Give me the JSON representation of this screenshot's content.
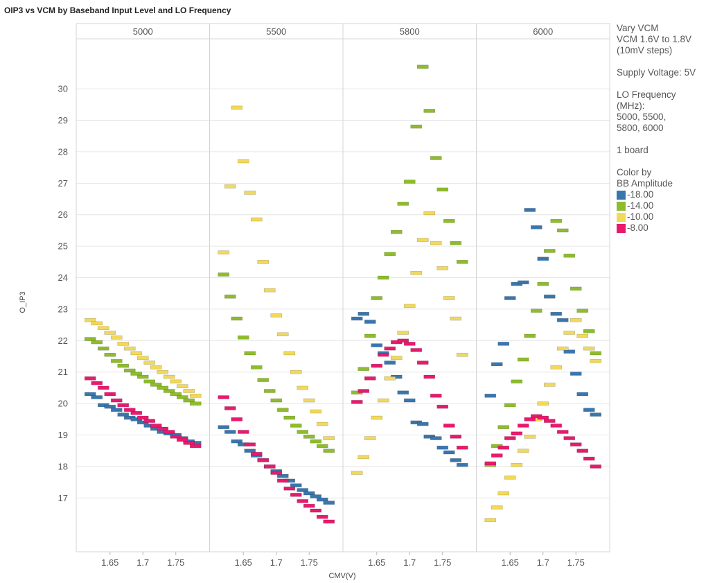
{
  "chart_data": {
    "type": "scatter",
    "title": "OIP3 vs VCM by Baseband Input Level and LO Frequency",
    "xlabel": "CMV(V)",
    "ylabel": "O_IP3",
    "xlim": [
      1.605,
      1.795
    ],
    "ylim": [
      15.4,
      31.5
    ],
    "yticks": [
      17,
      18,
      19,
      20,
      21,
      22,
      23,
      24,
      25,
      26,
      27,
      28,
      29,
      30
    ],
    "xticks": [
      1.65,
      1.7,
      1.75
    ],
    "xtick_labels": [
      "1.65",
      "1.7",
      "1.75"
    ],
    "grid": true,
    "legend_position": "right",
    "legend_title": "Color by BB Amplitude",
    "panels": [
      {
        "label": "5000",
        "series": [
          {
            "name": "-18.00",
            "x": [
              1.62,
              1.63,
              1.64,
              1.65,
              1.66,
              1.67,
              1.68,
              1.69,
              1.7,
              1.71,
              1.72,
              1.73,
              1.74,
              1.75,
              1.76,
              1.77,
              1.78
            ],
            "y": [
              20.3,
              20.2,
              19.95,
              19.9,
              19.8,
              19.65,
              19.55,
              19.5,
              19.4,
              19.3,
              19.2,
              19.1,
              19.05,
              19.0,
              18.9,
              18.8,
              18.75
            ]
          },
          {
            "name": "-14.00",
            "x": [
              1.62,
              1.63,
              1.64,
              1.65,
              1.66,
              1.67,
              1.68,
              1.69,
              1.7,
              1.71,
              1.72,
              1.73,
              1.74,
              1.75,
              1.76,
              1.77,
              1.78
            ],
            "y": [
              22.05,
              21.95,
              21.75,
              21.55,
              21.35,
              21.2,
              21.05,
              20.95,
              20.85,
              20.7,
              20.6,
              20.5,
              20.4,
              20.3,
              20.2,
              20.1,
              20.0
            ]
          },
          {
            "name": "-10.00",
            "x": [
              1.62,
              1.63,
              1.64,
              1.65,
              1.66,
              1.67,
              1.68,
              1.69,
              1.7,
              1.71,
              1.72,
              1.73,
              1.74,
              1.75,
              1.76,
              1.77,
              1.78
            ],
            "y": [
              22.65,
              22.55,
              22.4,
              22.25,
              22.1,
              21.9,
              21.75,
              21.6,
              21.45,
              21.3,
              21.15,
              21.0,
              20.85,
              20.7,
              20.55,
              20.4,
              20.25
            ]
          },
          {
            "name": "-8.00",
            "x": [
              1.62,
              1.63,
              1.64,
              1.65,
              1.66,
              1.67,
              1.68,
              1.69,
              1.7,
              1.71,
              1.72,
              1.73,
              1.74,
              1.75,
              1.76,
              1.77,
              1.78
            ],
            "y": [
              20.8,
              20.65,
              20.5,
              20.3,
              20.1,
              19.95,
              19.8,
              19.7,
              19.55,
              19.45,
              19.3,
              19.2,
              19.1,
              18.95,
              18.85,
              18.75,
              18.65
            ]
          }
        ]
      },
      {
        "label": "5500",
        "series": [
          {
            "name": "-18.00",
            "x": [
              1.62,
              1.63,
              1.64,
              1.65,
              1.66,
              1.67,
              1.68,
              1.69,
              1.7,
              1.71,
              1.72,
              1.73,
              1.74,
              1.75,
              1.76,
              1.77,
              1.78
            ],
            "y": [
              19.25,
              19.1,
              18.8,
              18.7,
              18.5,
              18.35,
              18.2,
              18.0,
              17.85,
              17.7,
              17.55,
              17.4,
              17.25,
              17.15,
              17.05,
              16.95,
              16.85
            ]
          },
          {
            "name": "-14.00",
            "x": [
              1.62,
              1.63,
              1.64,
              1.65,
              1.66,
              1.67,
              1.68,
              1.69,
              1.7,
              1.71,
              1.72,
              1.73,
              1.74,
              1.75,
              1.76,
              1.77,
              1.78
            ],
            "y": [
              24.1,
              23.4,
              22.7,
              22.1,
              21.6,
              21.15,
              20.75,
              20.4,
              20.1,
              19.8,
              19.55,
              19.3,
              19.1,
              18.95,
              18.8,
              18.65,
              18.5
            ]
          },
          {
            "name": "-10.00",
            "x": [
              1.62,
              1.63,
              1.64,
              1.65,
              1.66,
              1.67,
              1.68,
              1.69,
              1.7,
              1.71,
              1.72,
              1.73,
              1.74,
              1.75,
              1.76,
              1.77,
              1.78
            ],
            "y": [
              24.8,
              26.9,
              29.4,
              27.7,
              26.7,
              25.85,
              24.5,
              23.6,
              22.8,
              22.2,
              21.6,
              21.0,
              20.5,
              20.1,
              19.75,
              19.35,
              18.9
            ]
          },
          {
            "name": "-8.00",
            "x": [
              1.62,
              1.63,
              1.64,
              1.65,
              1.66,
              1.67,
              1.68,
              1.69,
              1.7,
              1.71,
              1.72,
              1.73,
              1.74,
              1.75,
              1.76,
              1.77,
              1.78
            ],
            "y": [
              20.2,
              19.85,
              19.5,
              19.1,
              18.7,
              18.4,
              18.2,
              18.0,
              17.8,
              17.55,
              17.3,
              17.1,
              16.9,
              16.75,
              16.6,
              16.4,
              16.25
            ]
          }
        ]
      },
      {
        "label": "5800",
        "series": [
          {
            "name": "-18.00",
            "x": [
              1.62,
              1.63,
              1.64,
              1.65,
              1.66,
              1.67,
              1.68,
              1.69,
              1.7,
              1.71,
              1.72,
              1.73,
              1.74,
              1.75,
              1.76,
              1.77,
              1.78
            ],
            "y": [
              22.7,
              22.85,
              22.6,
              21.85,
              21.6,
              21.3,
              20.85,
              20.35,
              20.1,
              19.4,
              19.35,
              18.95,
              18.9,
              18.6,
              18.45,
              18.2,
              18.05
            ]
          },
          {
            "name": "-14.00",
            "x": [
              1.62,
              1.63,
              1.64,
              1.65,
              1.66,
              1.67,
              1.68,
              1.69,
              1.7,
              1.71,
              1.72,
              1.73,
              1.74,
              1.75,
              1.76,
              1.77,
              1.78
            ],
            "y": [
              20.35,
              21.1,
              22.15,
              23.35,
              24.0,
              24.75,
              25.45,
              26.35,
              27.05,
              28.8,
              30.7,
              29.3,
              27.8,
              26.8,
              25.8,
              25.1,
              24.5
            ]
          },
          {
            "name": "-10.00",
            "x": [
              1.62,
              1.63,
              1.64,
              1.65,
              1.66,
              1.67,
              1.68,
              1.69,
              1.7,
              1.71,
              1.72,
              1.73,
              1.74,
              1.75,
              1.76,
              1.77,
              1.78
            ],
            "y": [
              17.8,
              18.3,
              18.9,
              19.55,
              20.1,
              20.8,
              21.45,
              22.25,
              23.1,
              24.15,
              25.2,
              26.05,
              25.1,
              24.3,
              23.35,
              22.7,
              21.55
            ]
          },
          {
            "name": "-8.00",
            "x": [
              1.62,
              1.63,
              1.64,
              1.65,
              1.66,
              1.67,
              1.68,
              1.69,
              1.7,
              1.71,
              1.72,
              1.73,
              1.74,
              1.75,
              1.76,
              1.77,
              1.78
            ],
            "y": [
              20.05,
              20.4,
              20.8,
              21.2,
              21.55,
              21.75,
              21.95,
              22.0,
              21.9,
              21.7,
              21.3,
              20.85,
              20.25,
              19.9,
              19.3,
              18.95,
              18.6
            ]
          }
        ]
      },
      {
        "label": "6000",
        "series": [
          {
            "name": "-18.00",
            "x": [
              1.62,
              1.63,
              1.64,
              1.65,
              1.66,
              1.67,
              1.68,
              1.69,
              1.7,
              1.71,
              1.72,
              1.73,
              1.74,
              1.75,
              1.76,
              1.77,
              1.78
            ],
            "y": [
              20.25,
              21.25,
              21.9,
              23.35,
              23.8,
              23.85,
              26.15,
              25.6,
              24.6,
              23.4,
              22.85,
              22.65,
              21.65,
              20.95,
              20.3,
              19.8,
              19.65
            ]
          },
          {
            "name": "-14.00",
            "x": [
              1.62,
              1.63,
              1.64,
              1.65,
              1.66,
              1.67,
              1.68,
              1.69,
              1.7,
              1.71,
              1.72,
              1.73,
              1.74,
              1.75,
              1.76,
              1.77,
              1.78
            ],
            "y": [
              18.05,
              18.65,
              19.25,
              19.95,
              20.7,
              21.4,
              22.15,
              22.95,
              23.8,
              24.85,
              25.8,
              25.5,
              24.7,
              23.65,
              22.95,
              22.3,
              21.6
            ]
          },
          {
            "name": "-10.00",
            "x": [
              1.62,
              1.63,
              1.64,
              1.65,
              1.66,
              1.67,
              1.68,
              1.69,
              1.7,
              1.71,
              1.72,
              1.73,
              1.74,
              1.75,
              1.76,
              1.77,
              1.78
            ],
            "y": [
              16.3,
              16.7,
              17.15,
              17.65,
              18.05,
              18.5,
              18.95,
              19.5,
              20.0,
              20.6,
              21.15,
              21.75,
              22.25,
              22.65,
              22.15,
              21.75,
              21.35
            ]
          },
          {
            "name": "-8.00",
            "x": [
              1.62,
              1.63,
              1.64,
              1.65,
              1.66,
              1.67,
              1.68,
              1.69,
              1.7,
              1.71,
              1.72,
              1.73,
              1.74,
              1.75,
              1.76,
              1.77,
              1.78
            ],
            "y": [
              18.1,
              18.35,
              18.6,
              18.9,
              19.05,
              19.3,
              19.5,
              19.6,
              19.55,
              19.45,
              19.3,
              19.1,
              18.9,
              18.7,
              18.5,
              18.25,
              18.0
            ]
          }
        ]
      }
    ]
  },
  "colors": {
    "-18.00": "#3a76ae",
    "-14.00": "#8ebc2c",
    "-10.00": "#f2d95a",
    "-8.00": "#e9196e",
    "grid": "#e6e6e6",
    "panel_border": "#d4d4d4"
  },
  "notes": {
    "line1": "Vary VCM",
    "line2": "VCM 1.6V to 1.8V",
    "line3": "(10mV steps)",
    "supply": "Supply Voltage: 5V",
    "lo1": "LO Frequency",
    "lo2": "(MHz):",
    "lo3": "5000, 5500,",
    "lo4": "5800, 6000",
    "boards": "1 board",
    "color1": "Color by",
    "color2": "BB Amplitude"
  }
}
